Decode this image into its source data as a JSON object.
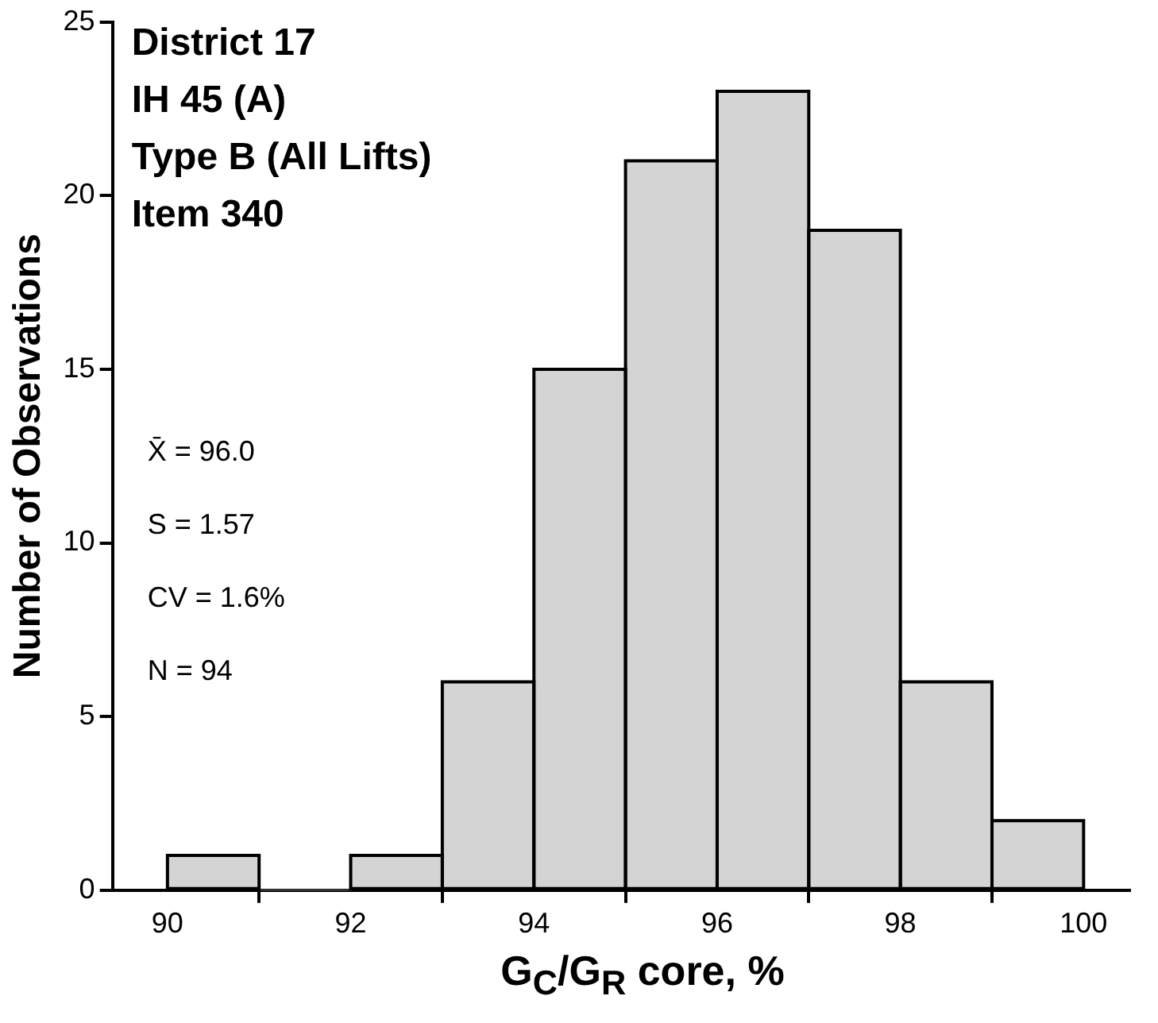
{
  "chart_data": {
    "type": "histogram",
    "xlabel": "G$_{C}$/G$_{R}$ core, %",
    "ylabel": "Number of Observations",
    "bins": [
      90,
      91,
      92,
      93,
      94,
      95,
      96,
      97,
      98,
      99,
      100
    ],
    "values": [
      1,
      0,
      1,
      6,
      15,
      21,
      23,
      19,
      6,
      2
    ],
    "color": "#d4d4d4",
    "xlim": [
      89.4,
      100.5
    ],
    "xticks": [
      90,
      92,
      94,
      96,
      98,
      100
    ],
    "ylim": [
      0,
      25
    ],
    "yticks": [
      0,
      5,
      10,
      15,
      20,
      25
    ],
    "grid": false,
    "legend": false,
    "annotations": [
      "District 17",
      "IH 45 (A)",
      "Type B (All Lifts)",
      "Item 340",
      "X̄ = 96.0",
      "S = 1.57",
      "CV = 1.6%",
      "N = 94"
    ]
  }
}
